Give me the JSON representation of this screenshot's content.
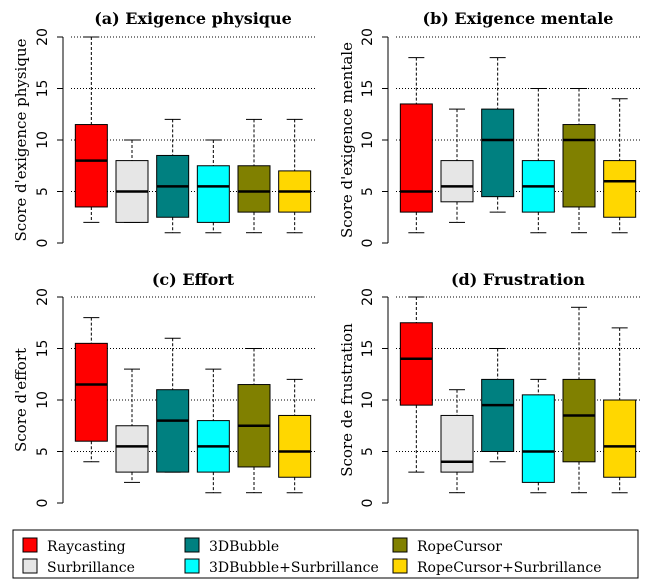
{
  "chart_data": {
    "type": "boxplot",
    "y_axis": {
      "ylim": [
        0,
        20
      ],
      "ticks": [
        0,
        5,
        10,
        15,
        20
      ],
      "grid": "dotted horizontal"
    },
    "legend": {
      "placement": "bottom",
      "entries": [
        {
          "name": "Raycasting",
          "color": "#ff0000"
        },
        {
          "name": "Surbrillance",
          "color": "#e6e6e6"
        },
        {
          "name": "3DBubble",
          "color": "#008080"
        },
        {
          "name": "3DBubble+Surbrillance",
          "color": "#00ffff"
        },
        {
          "name": "RopeCursor",
          "color": "#808000"
        },
        {
          "name": "RopeCursor+Surbrillance",
          "color": "#ffd700"
        }
      ]
    },
    "panels": [
      {
        "title": "(a) Exigence physique",
        "ylabel": "Score d'exigence physique",
        "boxes": [
          {
            "min": 2,
            "q1": 3.5,
            "median": 8,
            "q3": 11.5,
            "max": 20
          },
          {
            "min": 2,
            "q1": 2,
            "median": 5,
            "q3": 8,
            "max": 10
          },
          {
            "min": 1,
            "q1": 2.5,
            "median": 5.5,
            "q3": 8.5,
            "max": 12
          },
          {
            "min": 1,
            "q1": 2,
            "median": 5.5,
            "q3": 7.5,
            "max": 10
          },
          {
            "min": 1,
            "q1": 3,
            "median": 5,
            "q3": 7.5,
            "max": 12
          },
          {
            "min": 1,
            "q1": 3,
            "median": 5,
            "q3": 7,
            "max": 12
          }
        ]
      },
      {
        "title": "(b) Exigence mentale",
        "ylabel": "Score d'exigence mentale",
        "boxes": [
          {
            "min": 1,
            "q1": 3,
            "median": 5,
            "q3": 13.5,
            "max": 18
          },
          {
            "min": 2,
            "q1": 4,
            "median": 5.5,
            "q3": 8,
            "max": 13
          },
          {
            "min": 3,
            "q1": 4.5,
            "median": 10,
            "q3": 13,
            "max": 18
          },
          {
            "min": 1,
            "q1": 3,
            "median": 5.5,
            "q3": 8,
            "max": 15
          },
          {
            "min": 1,
            "q1": 3.5,
            "median": 10,
            "q3": 11.5,
            "max": 15
          },
          {
            "min": 1,
            "q1": 2.5,
            "median": 6,
            "q3": 8,
            "max": 14
          }
        ]
      },
      {
        "title": "(c) Effort",
        "ylabel": "Score d'effort",
        "boxes": [
          {
            "min": 4,
            "q1": 6,
            "median": 11.5,
            "q3": 15.5,
            "max": 18
          },
          {
            "min": 2,
            "q1": 3,
            "median": 5.5,
            "q3": 7.5,
            "max": 13
          },
          {
            "min": 3,
            "q1": 3,
            "median": 8,
            "q3": 11,
            "max": 16
          },
          {
            "min": 1,
            "q1": 3,
            "median": 5.5,
            "q3": 8,
            "max": 13
          },
          {
            "min": 1,
            "q1": 3.5,
            "median": 7.5,
            "q3": 11.5,
            "max": 15
          },
          {
            "min": 1,
            "q1": 2.5,
            "median": 5,
            "q3": 8.5,
            "max": 12
          }
        ]
      },
      {
        "title": "(d) Frustration",
        "ylabel": "Score de frustration",
        "boxes": [
          {
            "min": 3,
            "q1": 9.5,
            "median": 14,
            "q3": 17.5,
            "max": 20
          },
          {
            "min": 1,
            "q1": 3,
            "median": 4,
            "q3": 8.5,
            "max": 11
          },
          {
            "min": 4,
            "q1": 5,
            "median": 9.5,
            "q3": 12,
            "max": 15
          },
          {
            "min": 1,
            "q1": 2,
            "median": 5,
            "q3": 10.5,
            "max": 12
          },
          {
            "min": 1,
            "q1": 4,
            "median": 8.5,
            "q3": 12,
            "max": 19
          },
          {
            "min": 1,
            "q1": 2.5,
            "median": 5.5,
            "q3": 10,
            "max": 17
          }
        ]
      }
    ]
  }
}
